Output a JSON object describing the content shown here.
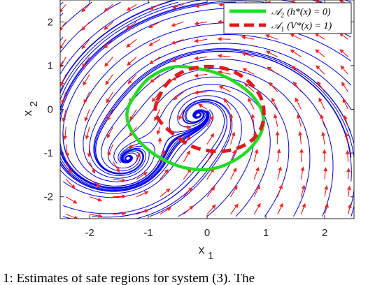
{
  "chart_data": {
    "type": "streamplot",
    "title": "",
    "xlabel": "x",
    "xlabel_subscript": "1",
    "ylabel": "x",
    "ylabel_subscript": "2",
    "xlim": [
      -2.5,
      2.5
    ],
    "ylim": [
      -2.5,
      2.5
    ],
    "xticks": [
      -2,
      -1,
      0,
      1,
      2
    ],
    "yticks": [
      -2,
      -1,
      0,
      1,
      2
    ],
    "grid": false,
    "legend_position": "top-right",
    "series": [
      {
        "name": "A2 (h*(x) = 0)",
        "label_main": "𝒜",
        "label_sub": "2",
        "label_rest": "(h*(x) = 0)",
        "style": "solid",
        "color": "#22dd22",
        "x": [
          -1.33,
          -1.1,
          -0.85,
          -0.55,
          -0.2,
          0.15,
          0.5,
          0.8,
          0.97,
          0.95,
          0.75,
          0.45,
          0.1,
          -0.3,
          -0.7,
          -1.05,
          -1.3,
          -1.38,
          -1.33
        ],
        "y": [
          0.1,
          0.6,
          0.85,
          1.0,
          0.95,
          0.85,
          0.62,
          0.3,
          -0.1,
          -0.5,
          -0.9,
          -1.2,
          -1.38,
          -1.38,
          -1.2,
          -0.9,
          -0.5,
          -0.15,
          0.1
        ]
      },
      {
        "name": "A1 (V*(x) = 1)",
        "label_main": "𝒜",
        "label_sub": "1",
        "label_rest": "(V*(x) = 1)",
        "style": "dashed",
        "color": "#e41a1a",
        "x": [
          -0.85,
          -0.7,
          -0.4,
          0.0,
          0.4,
          0.72,
          0.95,
          0.98,
          0.8,
          0.5,
          0.15,
          -0.25,
          -0.55,
          -0.8,
          -0.9,
          -0.85
        ],
        "y": [
          0.2,
          0.6,
          0.9,
          1.0,
          0.92,
          0.65,
          0.25,
          -0.3,
          -0.7,
          -0.92,
          -0.98,
          -0.88,
          -0.6,
          -0.3,
          -0.05,
          0.2
        ]
      }
    ],
    "equilibria": [
      {
        "x": 0.0,
        "y": 0.0,
        "kind": "stable-focus"
      },
      {
        "x": -1.5,
        "y": -1.25,
        "kind": "stable-focus"
      }
    ],
    "vector_field_color": "#ff0000",
    "streamline_color": "#0000ee"
  },
  "caption": "1: Estimates of safe regions for system (3). The"
}
